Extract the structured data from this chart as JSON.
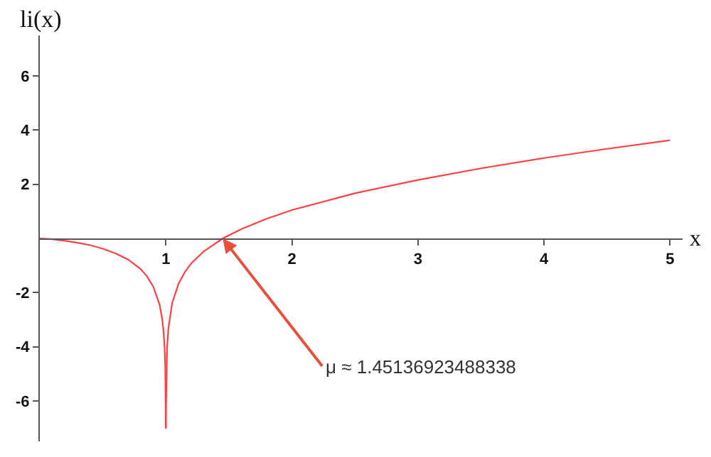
{
  "chart_data": {
    "type": "line",
    "xlabel": "x",
    "ylabel": "li(x)",
    "xlim": [
      0,
      5.1
    ],
    "ylim": [
      -7.5,
      7.5
    ],
    "xticks": [
      1,
      2,
      3,
      4,
      5
    ],
    "yticks": [
      -6,
      -4,
      -2,
      2,
      4,
      6
    ],
    "legend": false,
    "marker": "none",
    "line_style": "solid",
    "series": [
      {
        "color": "#ff4040",
        "x": [
          0,
          0.1,
          0.2,
          0.3,
          0.4,
          0.5,
          0.6,
          0.7,
          0.8,
          0.85,
          0.9,
          0.95,
          0.97,
          0.98,
          0.99,
          0.995,
          0.999,
          0.9995
        ],
        "values": [
          0,
          -0.03,
          -0.09,
          -0.16,
          -0.25,
          -0.38,
          -0.55,
          -0.78,
          -1.13,
          -1.4,
          -1.78,
          -2.44,
          -2.95,
          -3.35,
          -4.03,
          -4.72,
          -6.33,
          -7.02
        ]
      },
      {
        "color": "#ff4040",
        "x": [
          1.0005,
          1.001,
          1.01,
          1.02,
          1.05,
          1.1,
          1.15,
          1.2,
          1.3,
          1.45136923488338,
          1.6,
          1.8,
          2,
          2.5,
          3,
          3.5,
          4,
          4.5,
          5
        ],
        "values": [
          -7.02,
          -6.33,
          -4.02,
          -3.33,
          -2.39,
          -1.68,
          -1.25,
          -0.93,
          -0.48,
          0,
          0.35,
          0.73,
          1.05,
          1.67,
          2.16,
          2.59,
          2.97,
          3.31,
          3.63
        ]
      }
    ],
    "annotations": [
      {
        "text": "μ ≈ 1.45136923488338",
        "x": 1.45136923488338,
        "y": 0
      }
    ]
  }
}
